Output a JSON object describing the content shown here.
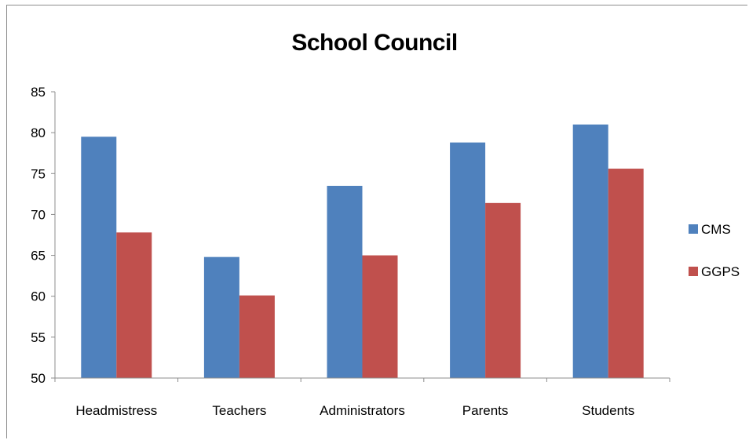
{
  "chart_data": {
    "type": "bar",
    "title": "School Council",
    "categories": [
      "Headmistress",
      "Teachers",
      "Administrators",
      "Parents",
      "Students"
    ],
    "series": [
      {
        "name": "CMS",
        "color": "#4f81bd",
        "values": [
          79.5,
          64.8,
          73.5,
          78.8,
          81.0
        ]
      },
      {
        "name": "GGPS",
        "color": "#c0504d",
        "values": [
          67.8,
          60.1,
          65.0,
          71.4,
          75.6
        ]
      }
    ],
    "ylim": [
      50,
      85
    ],
    "yticks": [
      50,
      55,
      60,
      65,
      70,
      75,
      80,
      85
    ],
    "xlabel": "",
    "ylabel": "",
    "grid": false,
    "legend_position": "right"
  }
}
